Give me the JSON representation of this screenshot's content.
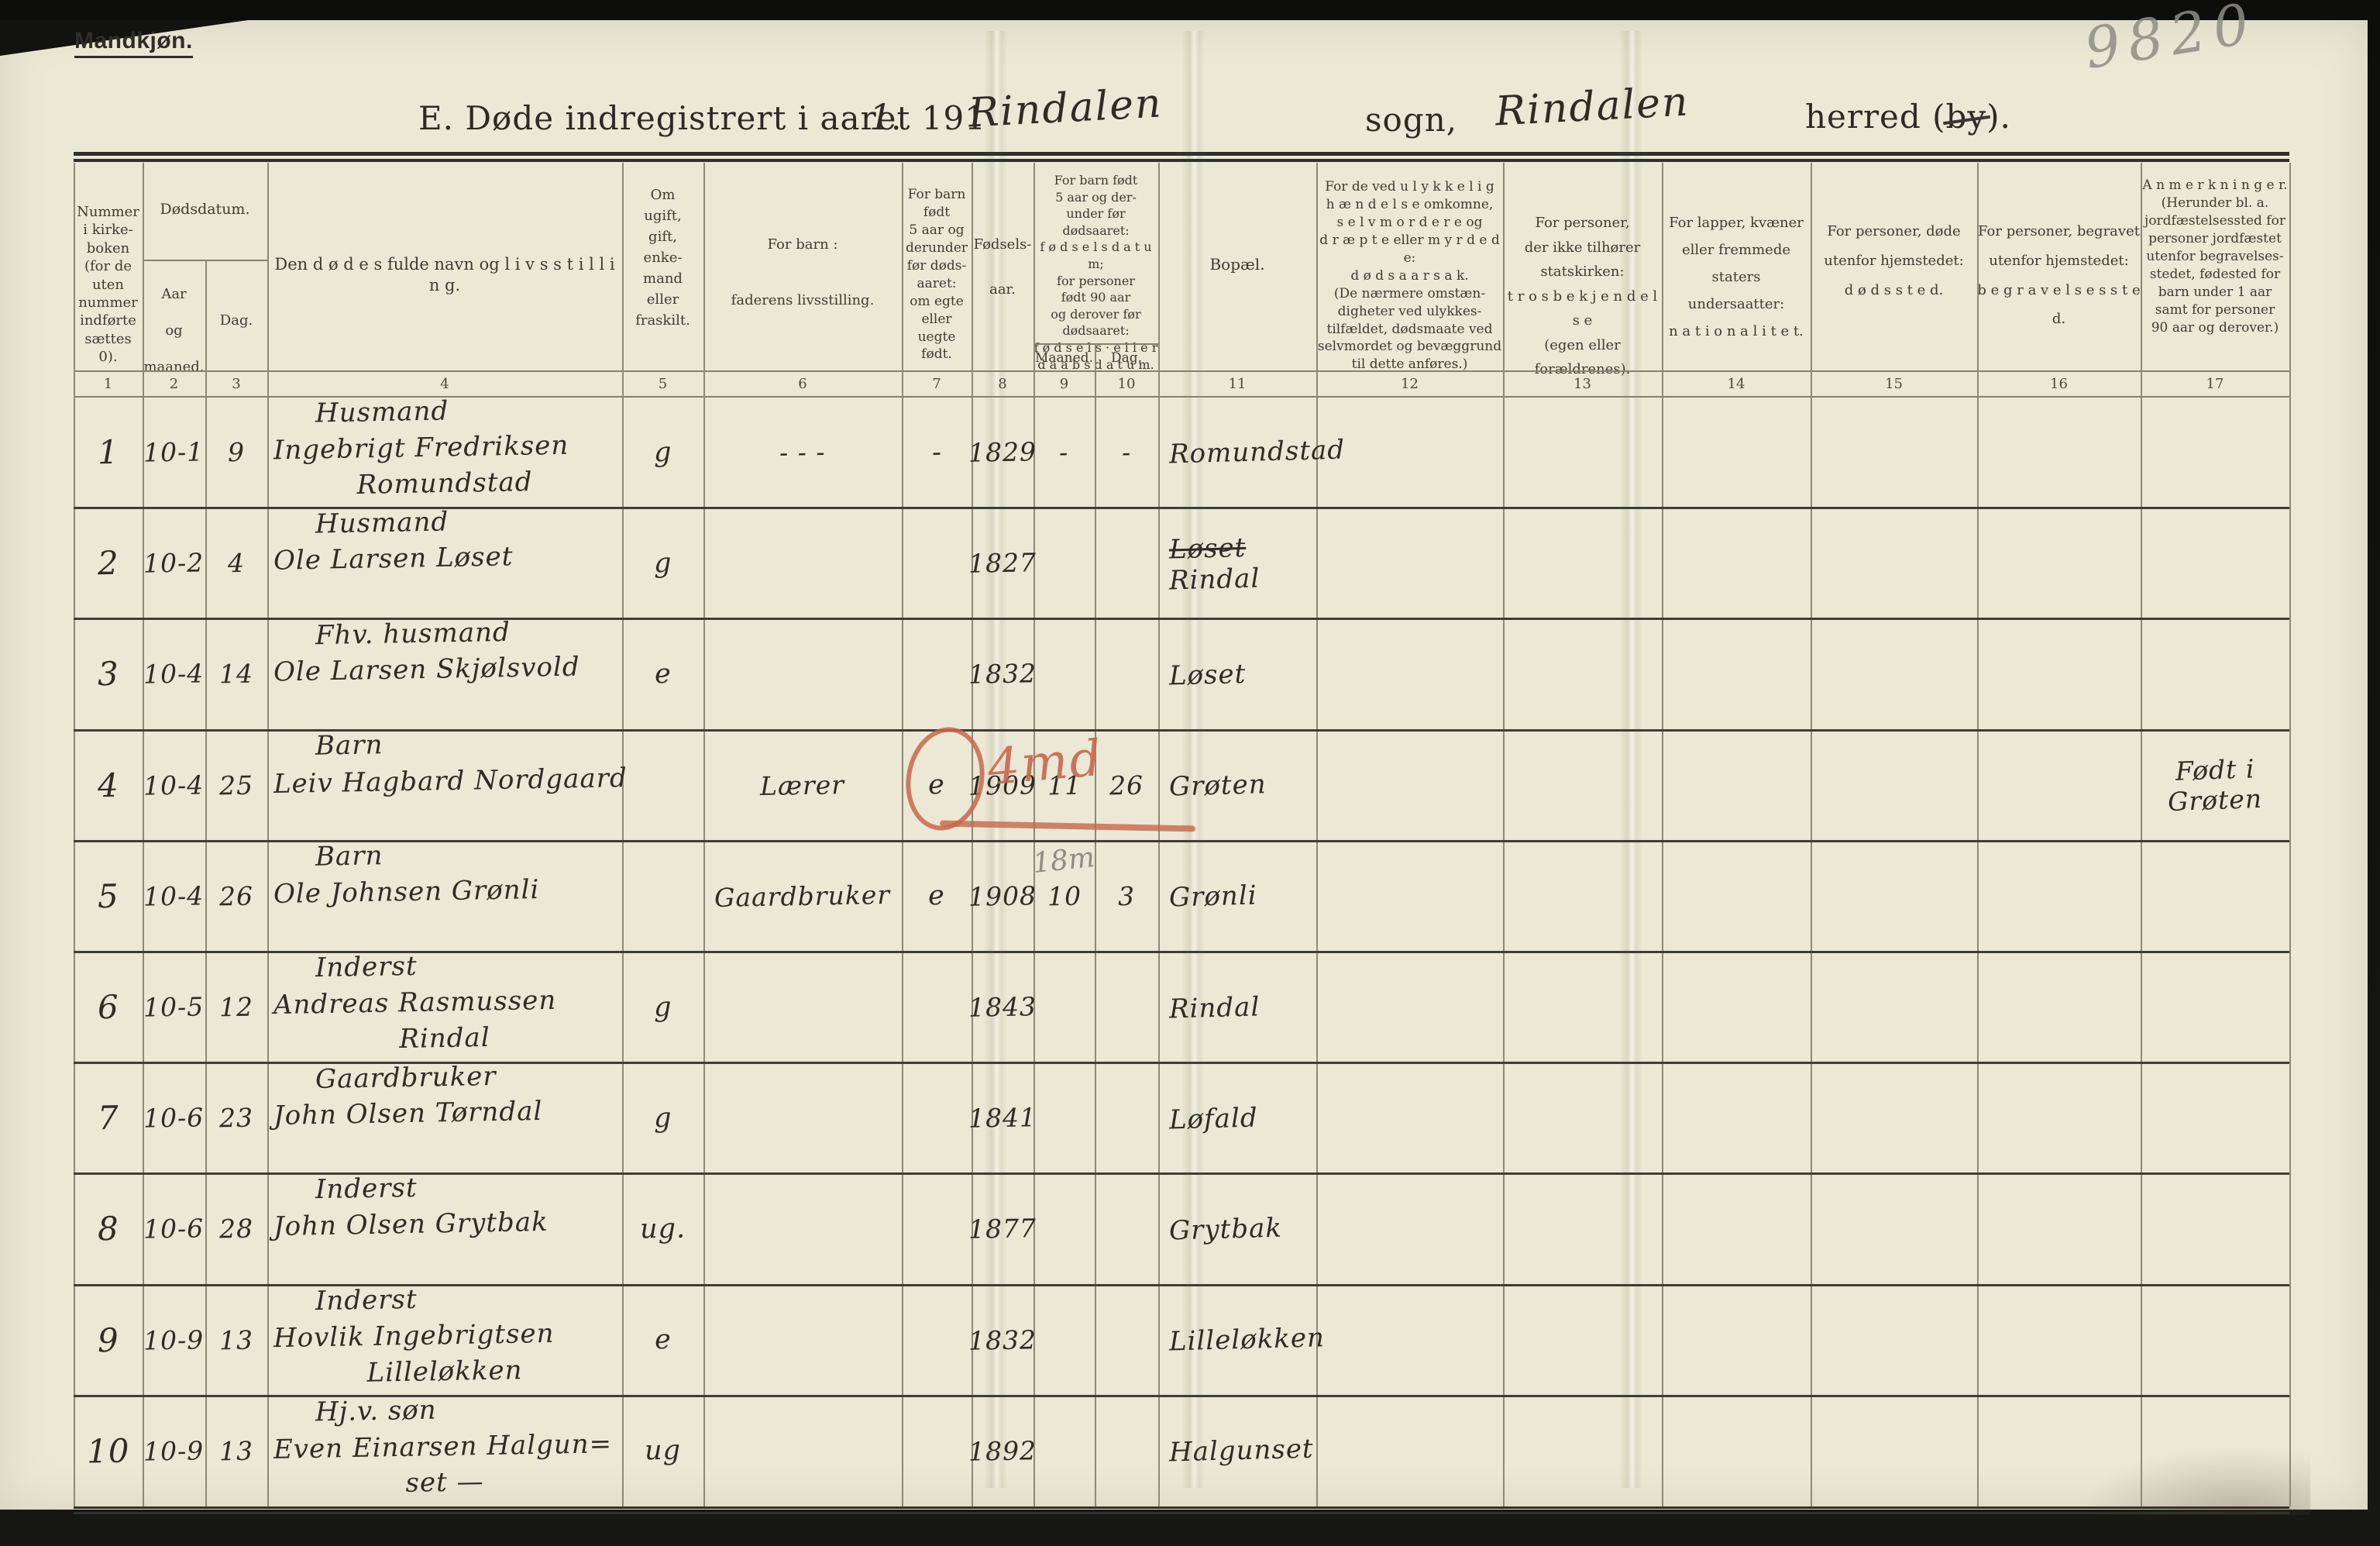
{
  "page": {
    "corner_label": "Mandkjøn.",
    "pencil_number": "9820",
    "title": {
      "printed_prefix": "E.  Døde indregistrert i aaret 191",
      "year_handwritten": "1",
      "after_year": ".",
      "parish_handwritten": "Rindalen",
      "sogn_label": "sogn,",
      "district_handwritten": "Rindalen",
      "herred_pre": "herred (",
      "herred_struck_word": "by",
      "herred_post": ")."
    }
  },
  "table": {
    "header": {
      "c1": "Nummer\ni kirke-\nboken\n(for de\nuten\nnummer\nindførte\nsættes\n0).",
      "dodsdatum": "Dødsdatum.",
      "aar_maaned": "Aar\n\nog\n\nmaaned.",
      "dag": "Dag.",
      "c4": "Den  d ø d e s  fulde navn og  l i v s s t i l l i n g.",
      "c5": "Om\nugift,\ngift,\nenke-\nmand\neller\nfraskilt.",
      "c6": "For barn :\n\nfaderens livsstilling.",
      "c7": "For barn\nfødt\n5 aar og\nderunder\nfør døds-\naaret:\nom egte\neller\nuegte\nfødt.",
      "c8": "Fødsels-\n\naar.",
      "c9_10": "For barn født\n5 aar og der-\nunder før\ndødsaaret:\nf ø d s e l s d a t u m;\nfor personer\nfødt 90 aar\nog derover før\ndødsaaret:\nf ø d s e l s ·  e l l e r\nd a a b s d a t u m.",
      "maaned_sub": "Maaned.",
      "dag_sub": "Dag.",
      "c11": "Bopæl.",
      "c12": "For de ved u l y k k e l i g\nh æ n d e l s e  omkomne,\ns e l v m o r d e r e  og\nd r æ p t e eller m y r d e d e:\nd ø d s a a r s a k.\n(De nærmere omstæn-\ndigheter ved ulykkes-\ntilfældet, dødsmaate ved\nselvmordet og bevæggrund\ntil dette anføres.)",
      "c13": "For personer,\nder ikke tilhører\nstatskirken:\nt r o s b e k j e n d e l s e\n(egen eller forældrenes).",
      "c14": "For lapper, kvæner\neller fremmede\nstaters undersaatter:\nn a t i o n a l i t e t.",
      "c15": "For personer, døde\nutenfor hjemstedet:\nd ø d s s t e d.",
      "c16": "For personer, begravet\nutenfor hjemstedet:\nb e g r a v e l s e s s t e d.",
      "c17": "A n m e r k n i n g e r.\n(Herunder bl. a.\njordfæstelsessted for\npersoner jordfæstet\nutenfor begravelses-\nstedet, fødested for\nbarn under 1 aar\nsamt for personer\n90 aar og derover.)"
    },
    "column_numbers": [
      "1",
      "2",
      "3",
      "4",
      "5",
      "6",
      "7",
      "8",
      "9",
      "10",
      "11",
      "12",
      "13",
      "14",
      "15",
      "16",
      "17"
    ],
    "rows": [
      {
        "no": "1",
        "death_date": "10-1",
        "death_day": "9",
        "name_lines": [
          "Husmand",
          "Ingebrigt Fredriksen",
          "Romundstad"
        ],
        "marital": "g",
        "father_occupation": "-  -  -",
        "legitimacy": "-",
        "birth_year": "1829",
        "birth_month": "-",
        "birth_day": "-",
        "residence_lines": [
          {
            "text": "Romundstad"
          }
        ],
        "remarks_lines": []
      },
      {
        "no": "2",
        "death_date": "10-2",
        "death_day": "4",
        "name_lines": [
          "Husmand",
          "Ole Larsen Løset"
        ],
        "marital": "g",
        "father_occupation": "",
        "legitimacy": "",
        "birth_year": "1827",
        "birth_month": "",
        "birth_day": "",
        "residence_lines": [
          {
            "text": "Løset",
            "strike": true
          },
          {
            "text": "Rindal"
          }
        ],
        "remarks_lines": []
      },
      {
        "no": "3",
        "death_date": "10-4",
        "death_day": "14",
        "name_lines": [
          "Fhv. husmand",
          "Ole Larsen Skjølsvold"
        ],
        "marital": "e",
        "father_occupation": "",
        "legitimacy": "",
        "birth_year": "1832",
        "birth_month": "",
        "birth_day": "",
        "residence_lines": [
          {
            "text": "Løset"
          }
        ],
        "remarks_lines": []
      },
      {
        "no": "4",
        "death_date": "10-4",
        "death_day": "25",
        "name_lines": [
          "Barn",
          "Leiv Hagbard Nordgaard"
        ],
        "marital": "",
        "father_occupation": "Lærer",
        "legitimacy": "e",
        "birth_year": "1909",
        "birth_month": "11",
        "birth_day": "26",
        "residence_lines": [
          {
            "text": "Grøten"
          }
        ],
        "remarks_lines": [
          "Født i",
          "Grøten"
        ]
      },
      {
        "no": "5",
        "death_date": "10-4",
        "death_day": "26",
        "name_lines": [
          "Barn",
          "Ole Johnsen Grønli"
        ],
        "marital": "",
        "father_occupation": "Gaardbruker",
        "legitimacy": "e",
        "birth_year": "1908",
        "birth_month": "10",
        "birth_day": "3",
        "residence_lines": [
          {
            "text": "Grønli"
          }
        ],
        "remarks_lines": []
      },
      {
        "no": "6",
        "death_date": "10-5",
        "death_day": "12",
        "name_lines": [
          "Inderst",
          "Andreas Rasmussen",
          "Rindal"
        ],
        "marital": "g",
        "father_occupation": "",
        "legitimacy": "",
        "birth_year": "1843",
        "birth_month": "",
        "birth_day": "",
        "residence_lines": [
          {
            "text": "Rindal"
          }
        ],
        "remarks_lines": []
      },
      {
        "no": "7",
        "death_date": "10-6",
        "death_day": "23",
        "name_lines": [
          "Gaardbruker",
          "John Olsen Tørndal"
        ],
        "marital": "g",
        "father_occupation": "",
        "legitimacy": "",
        "birth_year": "1841",
        "birth_month": "",
        "birth_day": "",
        "residence_lines": [
          {
            "text": "Løfald"
          }
        ],
        "remarks_lines": []
      },
      {
        "no": "8",
        "death_date": "10-6",
        "death_day": "28",
        "name_lines": [
          "Inderst",
          "John Olsen Grytbak"
        ],
        "marital": "ug.",
        "father_occupation": "",
        "legitimacy": "",
        "birth_year": "1877",
        "birth_month": "",
        "birth_day": "",
        "residence_lines": [
          {
            "text": "Grytbak"
          }
        ],
        "remarks_lines": []
      },
      {
        "no": "9",
        "death_date": "10-9",
        "death_day": "13",
        "name_lines": [
          "Inderst",
          "Hovlik Ingebrigtsen",
          "Lilleløkken"
        ],
        "marital": "e",
        "father_occupation": "",
        "legitimacy": "",
        "birth_year": "1832",
        "birth_month": "",
        "birth_day": "",
        "residence_lines": [
          {
            "text": "Lilleløkken"
          }
        ],
        "remarks_lines": []
      },
      {
        "no": "10",
        "death_date": "10-9",
        "death_day": "13",
        "name_lines": [
          "Hj.v. søn",
          "Even Einarsen Halgun=",
          "set —"
        ],
        "marital": "ug",
        "father_occupation": "",
        "legitimacy": "",
        "birth_year": "1892",
        "birth_month": "",
        "birth_day": "",
        "residence_lines": [
          {
            "text": "Halgunset"
          }
        ],
        "remarks_lines": []
      }
    ],
    "annotations": {
      "red_zero": "O",
      "red_duration": "4md",
      "pencil_age": "18m"
    }
  }
}
